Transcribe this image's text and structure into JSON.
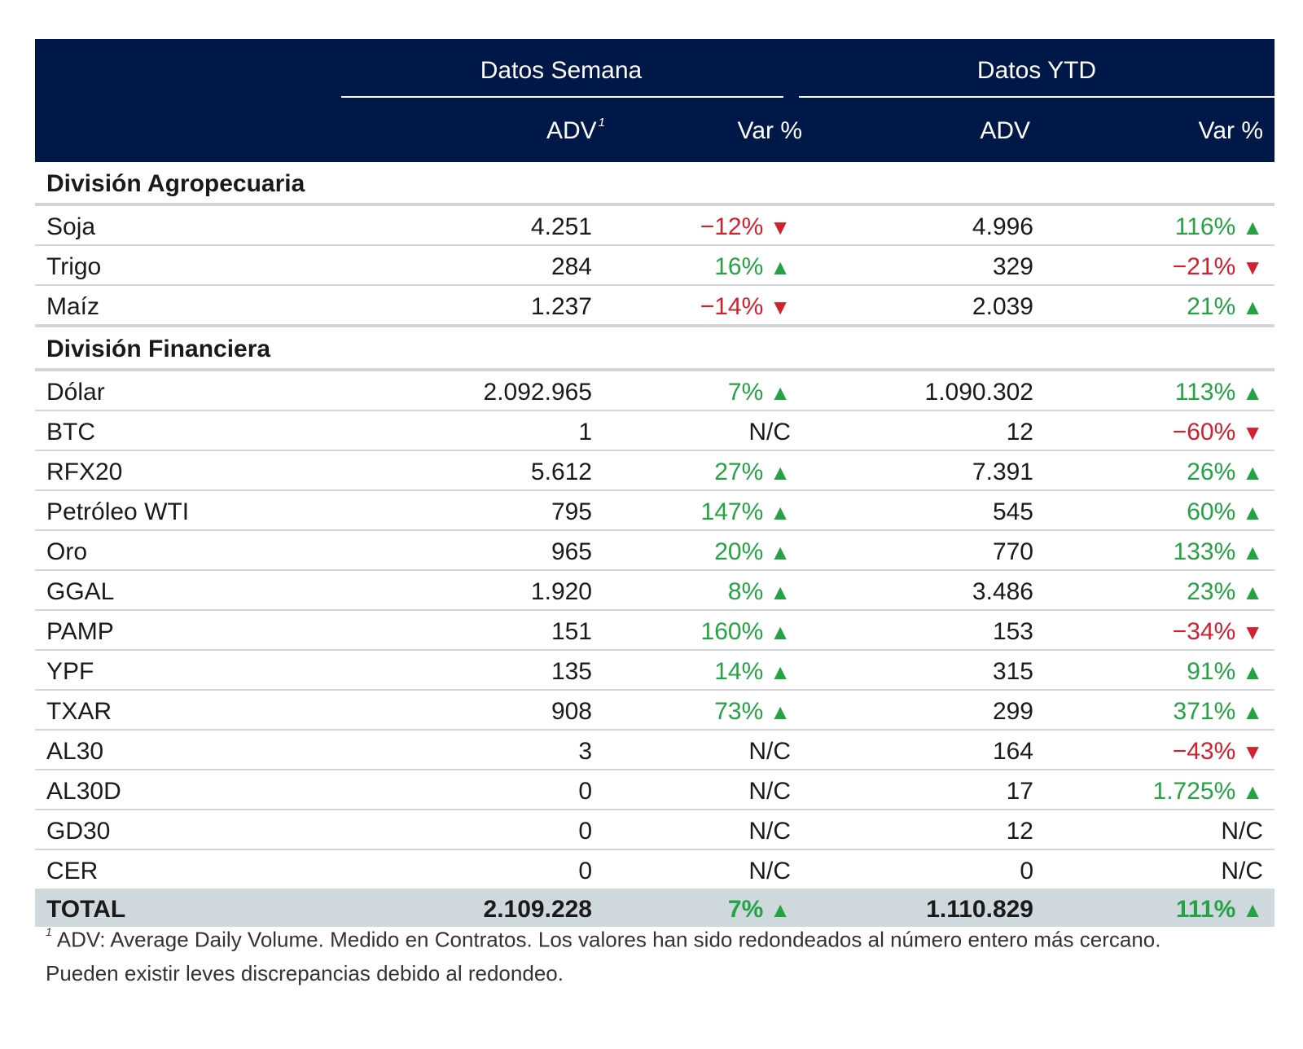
{
  "header": {
    "group_week": "Datos Semana",
    "group_ytd": "Datos YTD",
    "col_adv_week": "ADV",
    "col_adv_week_note": "1",
    "col_var_week": "Var %",
    "col_adv_ytd": "ADV",
    "col_var_ytd": "Var %"
  },
  "sections": [
    {
      "title": "División Agropecuaria",
      "rows": [
        {
          "name": "Soja",
          "adv_week": "4.251",
          "var_week": "−12%",
          "dir_week": "down",
          "adv_ytd": "4.996",
          "var_ytd": "116%",
          "dir_ytd": "up"
        },
        {
          "name": "Trigo",
          "adv_week": "284",
          "var_week": "16%",
          "dir_week": "up",
          "adv_ytd": "329",
          "var_ytd": "−21%",
          "dir_ytd": "down"
        },
        {
          "name": "Maíz",
          "adv_week": "1.237",
          "var_week": "−14%",
          "dir_week": "down",
          "adv_ytd": "2.039",
          "var_ytd": "21%",
          "dir_ytd": "up"
        }
      ]
    },
    {
      "title": "División Financiera",
      "rows": [
        {
          "name": "Dólar",
          "adv_week": "2.092.965",
          "var_week": "7%",
          "dir_week": "up",
          "adv_ytd": "1.090.302",
          "var_ytd": "113%",
          "dir_ytd": "up"
        },
        {
          "name": "BTC",
          "adv_week": "1",
          "var_week": "N/C",
          "dir_week": "none",
          "adv_ytd": "12",
          "var_ytd": "−60%",
          "dir_ytd": "down"
        },
        {
          "name": "RFX20",
          "adv_week": "5.612",
          "var_week": "27%",
          "dir_week": "up",
          "adv_ytd": "7.391",
          "var_ytd": "26%",
          "dir_ytd": "up"
        },
        {
          "name": "Petróleo WTI",
          "adv_week": "795",
          "var_week": "147%",
          "dir_week": "up",
          "adv_ytd": "545",
          "var_ytd": "60%",
          "dir_ytd": "up"
        },
        {
          "name": "Oro",
          "adv_week": "965",
          "var_week": "20%",
          "dir_week": "up",
          "adv_ytd": "770",
          "var_ytd": "133%",
          "dir_ytd": "up"
        },
        {
          "name": "GGAL",
          "adv_week": "1.920",
          "var_week": "8%",
          "dir_week": "up",
          "adv_ytd": "3.486",
          "var_ytd": "23%",
          "dir_ytd": "up"
        },
        {
          "name": "PAMP",
          "adv_week": "151",
          "var_week": "160%",
          "dir_week": "up",
          "adv_ytd": "153",
          "var_ytd": "−34%",
          "dir_ytd": "down"
        },
        {
          "name": "YPF",
          "adv_week": "135",
          "var_week": "14%",
          "dir_week": "up",
          "adv_ytd": "315",
          "var_ytd": "91%",
          "dir_ytd": "up"
        },
        {
          "name": "TXAR",
          "adv_week": "908",
          "var_week": "73%",
          "dir_week": "up",
          "adv_ytd": "299",
          "var_ytd": "371%",
          "dir_ytd": "up"
        },
        {
          "name": "AL30",
          "adv_week": "3",
          "var_week": "N/C",
          "dir_week": "none",
          "adv_ytd": "164",
          "var_ytd": "−43%",
          "dir_ytd": "down"
        },
        {
          "name": "AL30D",
          "adv_week": "0",
          "var_week": "N/C",
          "dir_week": "none",
          "adv_ytd": "17",
          "var_ytd": "1.725%",
          "dir_ytd": "up"
        },
        {
          "name": "GD30",
          "adv_week": "0",
          "var_week": "N/C",
          "dir_week": "none",
          "adv_ytd": "12",
          "var_ytd": "N/C",
          "dir_ytd": "none"
        },
        {
          "name": "CER",
          "adv_week": "0",
          "var_week": "N/C",
          "dir_week": "none",
          "adv_ytd": "0",
          "var_ytd": "N/C",
          "dir_ytd": "none"
        }
      ]
    }
  ],
  "total": {
    "name": "TOTAL",
    "adv_week": "2.109.228",
    "var_week": "7%",
    "dir_week": "up",
    "adv_ytd": "1.110.829",
    "var_ytd": "111%",
    "dir_ytd": "up"
  },
  "footnote": {
    "marker": "1",
    "line1": "ADV: Average Daily Volume. Medido en Contratos. Los valores han sido redondeados al número entero más cercano.",
    "line2": "Pueden existir leves discrepancias debido al redondeo."
  },
  "colors": {
    "header_bg": "#001847",
    "up": "#25a244",
    "down": "#d1202f",
    "total_bg": "#cfd8dc",
    "rule": "#d3d6d9"
  },
  "icons": {
    "up": "triangle-up-icon",
    "down": "triangle-down-icon"
  }
}
